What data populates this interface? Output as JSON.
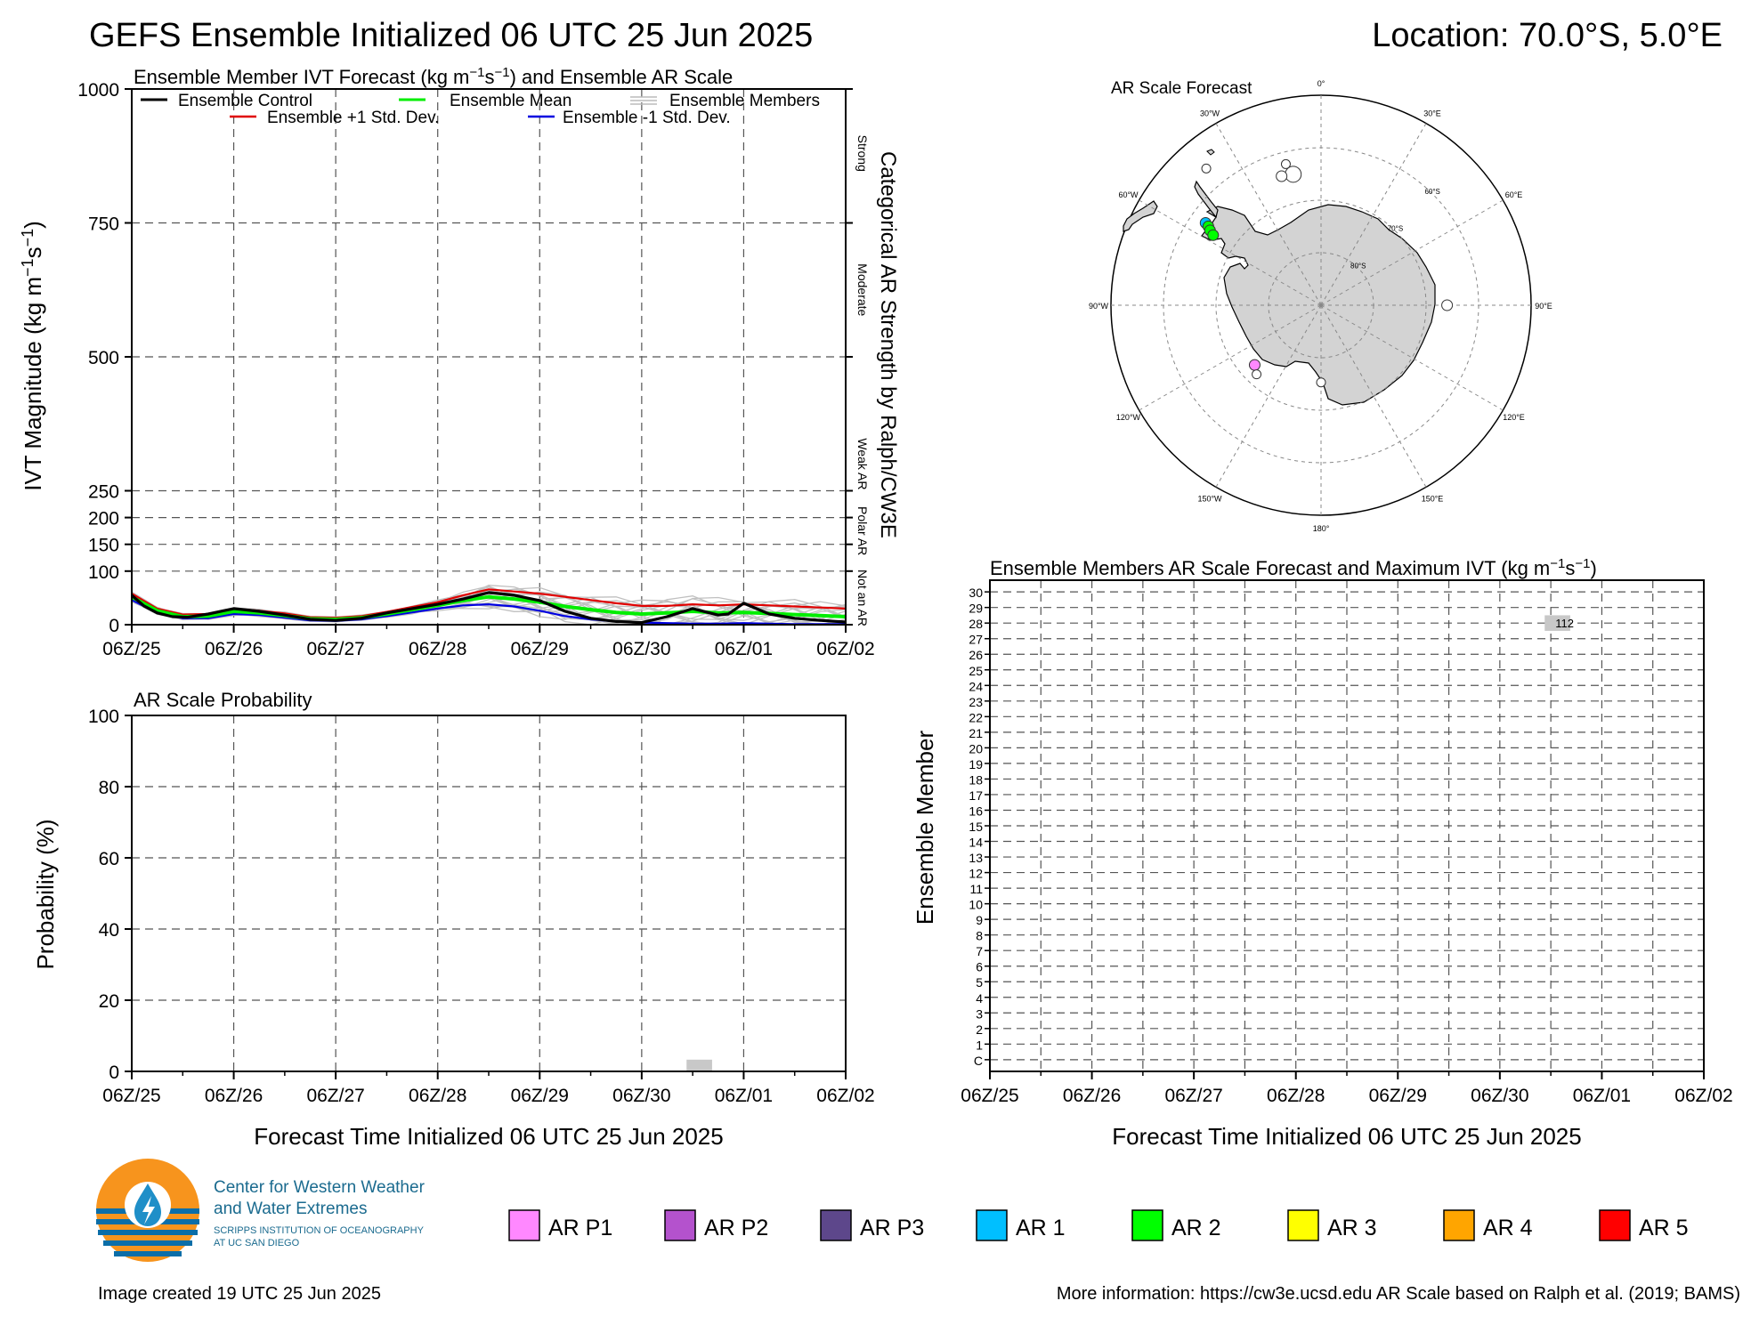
{
  "header": {
    "title": "GEFS Ensemble Initialized 06 UTC 25 Jun 2025",
    "location": "Location: 70.0°S, 5.0°E"
  },
  "time_ticks": [
    "06Z/25",
    "06Z/26",
    "06Z/27",
    "06Z/28",
    "06Z/29",
    "06Z/30",
    "06Z/01",
    "06Z/02"
  ],
  "colors": {
    "control": "#000000",
    "mean": "#00ee00",
    "members": "#c0c0c0",
    "plus_sd": "#e00000",
    "minus_sd": "#0000e0",
    "land": "#d3d3d3",
    "bar": "#c8c8c8"
  },
  "chart_data": [
    {
      "id": "ivt",
      "type": "line",
      "title_pre": "Ensemble Member IVT Forecast (kg m",
      "title_mid": "s",
      "title_post": ") and Ensemble AR Scale",
      "ylabel_pre": "IVT Magnitude (kg m",
      "ylabel_mid": "s",
      "ylabel_post": ")",
      "exp_text": "−1",
      "right_label": "Categorical AR Strength by Ralph/CW3E",
      "categories": [
        "Strong",
        "Moderate",
        "Weak AR",
        "Polar AR",
        "Not an AR"
      ],
      "yticks": [
        0,
        100,
        150,
        200,
        250,
        500,
        750,
        1000
      ],
      "ylim": [
        0,
        1000
      ],
      "x_days": [
        0,
        7
      ],
      "legend": [
        "Ensemble Control",
        "Ensemble Mean",
        "Ensemble Members",
        "Ensemble +1 Std. Dev.",
        "Ensemble -1 Std. Dev."
      ],
      "series": [
        {
          "name": "Ensemble Control",
          "colorKey": "control",
          "x": [
            0,
            0.12,
            0.25,
            0.4,
            0.55,
            0.75,
            1,
            1.25,
            1.5,
            1.75,
            2,
            2.25,
            2.5,
            2.75,
            3,
            3.25,
            3.5,
            3.75,
            4,
            4.25,
            4.5,
            4.75,
            5,
            5.25,
            5.5,
            5.75,
            5.85,
            6,
            6.25,
            6.5,
            6.75,
            7
          ],
          "y": [
            55,
            35,
            22,
            15,
            14,
            20,
            30,
            25,
            18,
            10,
            8,
            12,
            22,
            30,
            38,
            48,
            60,
            55,
            45,
            25,
            12,
            6,
            4,
            15,
            30,
            18,
            20,
            40,
            20,
            12,
            8,
            5
          ]
        },
        {
          "name": "Ensemble Mean",
          "colorKey": "mean",
          "x": [
            0,
            0.25,
            0.5,
            0.75,
            1,
            1.25,
            1.5,
            1.75,
            2,
            2.25,
            2.5,
            2.75,
            3,
            3.25,
            3.5,
            3.75,
            4,
            4.25,
            4.5,
            4.75,
            5,
            5.25,
            5.5,
            5.75,
            6,
            6.25,
            6.5,
            6.75,
            7
          ],
          "y": [
            52,
            26,
            15,
            16,
            25,
            22,
            17,
            11,
            10,
            13,
            20,
            28,
            36,
            45,
            52,
            48,
            42,
            34,
            28,
            23,
            20,
            22,
            25,
            22,
            23,
            21,
            19,
            17,
            15
          ]
        },
        {
          "name": "Ensemble +1 Std. Dev.",
          "colorKey": "plus_sd",
          "x": [
            0,
            0.25,
            0.5,
            0.75,
            1,
            1.25,
            1.5,
            1.75,
            2,
            2.25,
            2.5,
            2.75,
            3,
            3.25,
            3.5,
            3.75,
            4,
            4.25,
            4.5,
            4.75,
            5,
            5.25,
            5.5,
            5.75,
            6,
            6.25,
            6.5,
            6.75,
            7
          ],
          "y": [
            58,
            30,
            19,
            20,
            30,
            26,
            21,
            14,
            13,
            16,
            24,
            33,
            42,
            55,
            66,
            62,
            58,
            52,
            46,
            40,
            35,
            35,
            38,
            36,
            38,
            36,
            34,
            32,
            30
          ]
        },
        {
          "name": "Ensemble -1 Std. Dev.",
          "colorKey": "minus_sd",
          "x": [
            0,
            0.25,
            0.5,
            0.75,
            1,
            1.25,
            1.5,
            1.75,
            2,
            2.25,
            2.5,
            2.75,
            3,
            3.25,
            3.5,
            3.75,
            4,
            4.25,
            4.5,
            4.75,
            5,
            5.25,
            5.5,
            5.75,
            6,
            6.25,
            6.5,
            6.75,
            7
          ],
          "y": [
            46,
            22,
            12,
            12,
            20,
            18,
            13,
            8,
            7,
            10,
            16,
            23,
            30,
            36,
            38,
            34,
            26,
            16,
            10,
            6,
            4,
            3,
            2,
            2,
            3,
            2,
            1,
            1,
            1
          ]
        }
      ]
    },
    {
      "id": "prob",
      "type": "bar",
      "title": "AR Scale Probability",
      "xlabel": "Forecast Time Initialized 06 UTC 25 Jun 2025",
      "ylabel": "Probability (%)",
      "yticks": [
        0,
        20,
        40,
        60,
        80,
        100
      ],
      "ylim": [
        0,
        100
      ],
      "bars": [
        {
          "start": 5.44,
          "end": 5.69,
          "value": 3.3
        }
      ]
    },
    {
      "id": "members",
      "type": "heatmap",
      "title_pre": "Ensemble Members AR Scale Forecast and Maximum IVT (kg m",
      "title_mid": "s",
      "title_post": ")",
      "xlabel": "Forecast Time Initialized 06 UTC 25 Jun 2025",
      "ylabel": "Ensemble Member",
      "rows": [
        "C",
        "1",
        "2",
        "3",
        "4",
        "5",
        "6",
        "7",
        "8",
        "9",
        "10",
        "11",
        "12",
        "13",
        "14",
        "15",
        "16",
        "17",
        "18",
        "19",
        "20",
        "21",
        "22",
        "23",
        "24",
        "25",
        "26",
        "27",
        "28",
        "29",
        "30"
      ],
      "cells": [
        {
          "row": "28",
          "start": 5.44,
          "end": 5.69,
          "label": "112"
        }
      ]
    },
    {
      "id": "map",
      "type": "other",
      "title": "AR Scale Forecast",
      "lon_labels": [
        "0°",
        "30°E",
        "60°E",
        "90°E",
        "120°E",
        "150°E",
        "180°",
        "150°W",
        "120°W",
        "90°W",
        "60°W",
        "30°W"
      ],
      "lat_labels": [
        "60°S",
        "70°S",
        "80°S"
      ],
      "markers": [
        {
          "lon": -40,
          "lat": -56,
          "color": "#ffffff",
          "size": 5
        },
        {
          "lon": -14,
          "lat": -62.3,
          "color": "#ffffff",
          "size": 5
        },
        {
          "lon": -12,
          "lat": -64.5,
          "color": "#ffffff",
          "size": 9
        },
        {
          "lon": -17,
          "lat": -64.3,
          "color": "#ffffff",
          "size": 6
        },
        {
          "lon": -54.5,
          "lat": -63,
          "color": "#00bfff",
          "size": 6
        },
        {
          "lon": -55,
          "lat": -63.8,
          "color": "#00ff00",
          "size": 6
        },
        {
          "lon": -56,
          "lat": -64.5,
          "color": "#00ff00",
          "size": 6
        },
        {
          "lon": -57,
          "lat": -65.5,
          "color": "#00ff00",
          "size": 6
        },
        {
          "lon": -132,
          "lat": -73,
          "color": "#ff88ff",
          "size": 6
        },
        {
          "lon": -137,
          "lat": -72,
          "color": "#ffffff",
          "size": 5
        },
        {
          "lon": -180,
          "lat": -75.3,
          "color": "#ffffff",
          "size": 5
        },
        {
          "lon": 90,
          "lat": -66,
          "color": "#ffffff",
          "size": 6
        }
      ]
    }
  ],
  "legend_scale": [
    {
      "label": "AR P1",
      "color": "#ff88ff"
    },
    {
      "label": "AR P2",
      "color": "#b452cd"
    },
    {
      "label": "AR P3",
      "color": "#5d478b"
    },
    {
      "label": "AR 1",
      "color": "#00bfff"
    },
    {
      "label": "AR 2",
      "color": "#00ff00"
    },
    {
      "label": "AR 3",
      "color": "#ffff00"
    },
    {
      "label": "AR 4",
      "color": "#ffa500"
    },
    {
      "label": "AR 5",
      "color": "#ff0000"
    }
  ],
  "logo": {
    "line1": "Center for Western Weather",
    "line2": "and Water Extremes",
    "line3": "SCRIPPS INSTITUTION OF OCEANOGRAPHY",
    "line4": "AT UC SAN DIEGO"
  },
  "footer": {
    "created": "Image created 19 UTC 25 Jun 2025",
    "info": "More information: https://cw3e.ucsd.edu AR Scale based on Ralph et al. (2019; BAMS)"
  }
}
